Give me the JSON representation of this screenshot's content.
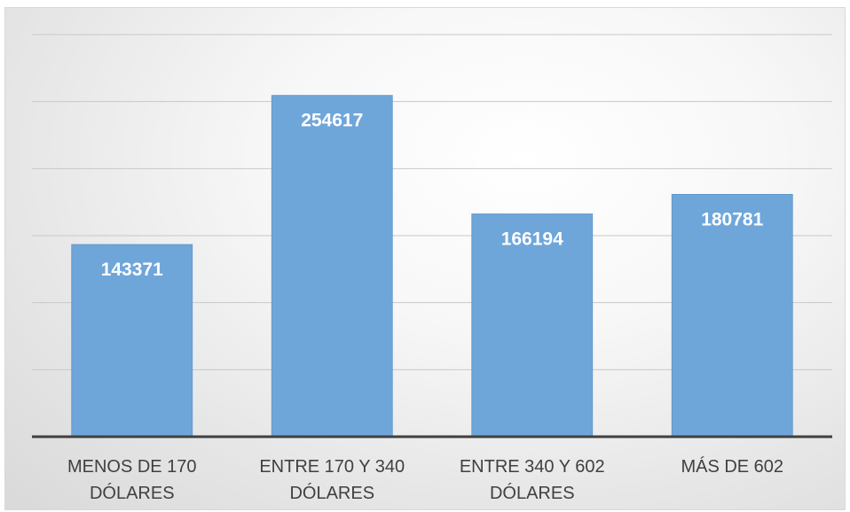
{
  "chart_data": {
    "type": "bar",
    "categories": [
      [
        "MENOS DE 170",
        "DÓLARES"
      ],
      [
        "ENTRE 170 Y 340",
        "DÓLARES"
      ],
      [
        "ENTRE 340 Y 602",
        "DÓLARES"
      ],
      [
        "MÁS DE 602"
      ]
    ],
    "values": [
      143371,
      254617,
      166194,
      180781
    ],
    "data_labels": [
      "143371",
      "254617",
      "166194",
      "180781"
    ],
    "title": "",
    "xlabel": "",
    "ylabel": "",
    "ylim": [
      0,
      300000
    ],
    "grid": true,
    "legend": "none",
    "colors": {
      "bar": "#6fa6d9",
      "bar_edge": "#5b93c9",
      "grid": "#c8c8c8",
      "axis": "#404040"
    }
  }
}
